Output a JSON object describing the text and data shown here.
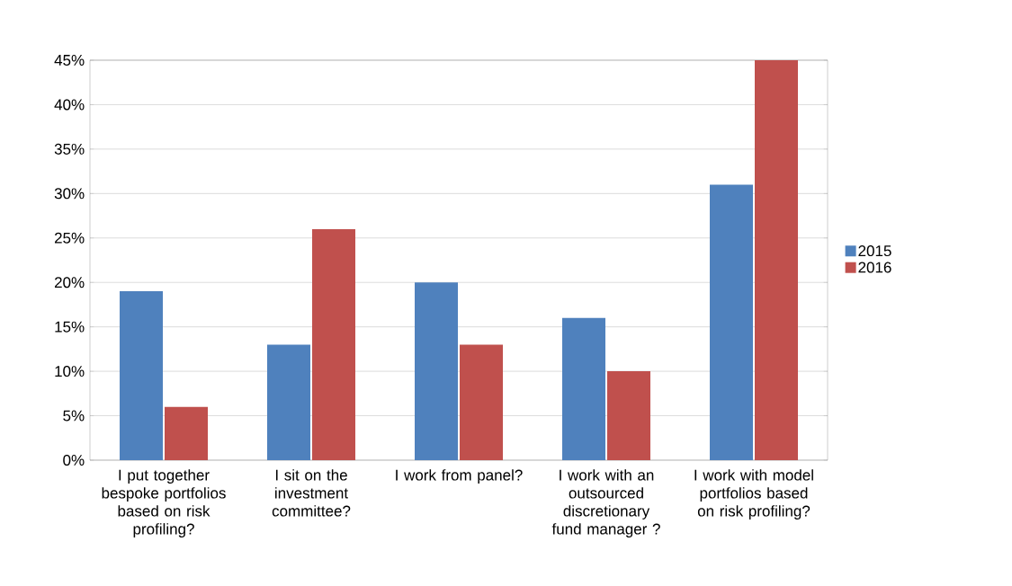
{
  "chart_data": {
    "type": "bar",
    "categories": [
      "I put together bespoke portfolios based on risk profiling?",
      "I sit on the investment committee?",
      "I work from panel?",
      "I work with an outsourced discretionary fund manager ?",
      "I work with model portfolios based on risk profiling?"
    ],
    "series": [
      {
        "name": "2015",
        "color": "#4f81bd",
        "values": [
          19,
          13,
          20,
          16,
          31
        ]
      },
      {
        "name": "2016",
        "color": "#c0504d",
        "values": [
          6,
          26,
          13,
          10,
          45
        ]
      }
    ],
    "ylim": [
      0,
      45
    ],
    "yticks": [
      {
        "value": 0,
        "label": "0%"
      },
      {
        "value": 5,
        "label": "5%"
      },
      {
        "value": 10,
        "label": "10%"
      },
      {
        "value": 15,
        "label": "15%"
      },
      {
        "value": 20,
        "label": "20%"
      },
      {
        "value": 25,
        "label": "25%"
      },
      {
        "value": 30,
        "label": "30%"
      },
      {
        "value": 35,
        "label": "35%"
      },
      {
        "value": 40,
        "label": "40%"
      },
      {
        "value": 45,
        "label": "45%"
      }
    ],
    "grid": "y",
    "legend": "right"
  }
}
